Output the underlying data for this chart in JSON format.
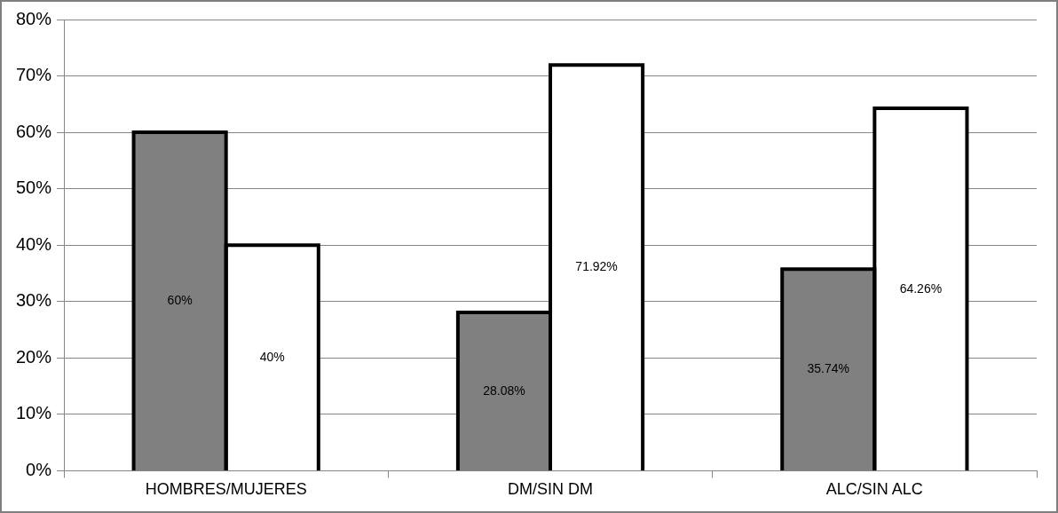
{
  "chart_data": {
    "type": "bar",
    "categories": [
      "HOMBRES/MUJERES",
      "DM/SIN DM",
      "ALC/SIN ALC"
    ],
    "series": [
      {
        "color": "#808080",
        "values": [
          60,
          28.08,
          35.74
        ],
        "value_labels": [
          "60%",
          "28.08%",
          "35.74%"
        ]
      },
      {
        "color": "#ffffff",
        "values": [
          40,
          71.92,
          64.26
        ],
        "value_labels": [
          "40%",
          "71.92%",
          "64.26%"
        ]
      }
    ],
    "ylim": [
      0,
      80
    ],
    "yticks": [
      {
        "value": 0,
        "label": "0%"
      },
      {
        "value": 10,
        "label": "10%"
      },
      {
        "value": 20,
        "label": "20%"
      },
      {
        "value": 30,
        "label": "30%"
      },
      {
        "value": 40,
        "label": "40%"
      },
      {
        "value": 50,
        "label": "50%"
      },
      {
        "value": 60,
        "label": "60%"
      },
      {
        "value": 70,
        "label": "70%"
      },
      {
        "value": 80,
        "label": "80%"
      }
    ],
    "grid": "y",
    "legend": false
  }
}
